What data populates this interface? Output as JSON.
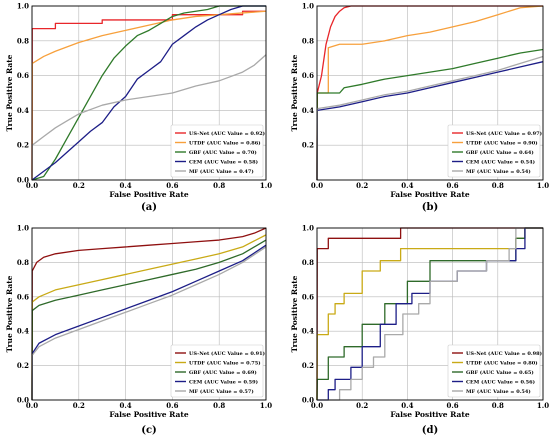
{
  "chart_data": [
    {
      "type": "line",
      "caption": "(a)",
      "xlabel": "False Positive Rate",
      "ylabel": "True Positive Rate",
      "xlim": [
        0,
        1
      ],
      "ylim": [
        0,
        1
      ],
      "ticks": [
        "0.0",
        "0.2",
        "0.4",
        "0.6",
        "0.8",
        "1.0"
      ],
      "grid": true,
      "legend": "lower-right",
      "series": [
        {
          "name": "US-Net (AUC Value = 0.92)",
          "color": "#e8262a",
          "x": [
            0,
            0.001,
            0.1,
            0.1,
            0.3,
            0.3,
            0.6,
            0.6,
            0.9,
            0.9,
            1.0
          ],
          "y": [
            0,
            0.87,
            0.87,
            0.9,
            0.9,
            0.92,
            0.92,
            0.95,
            0.95,
            0.97,
            0.97
          ]
        },
        {
          "name": "UTDF (AUC Value = 0.86)",
          "color": "#f7a03c",
          "x": [
            0,
            0.001,
            0.05,
            0.1,
            0.2,
            0.3,
            0.4,
            0.5,
            0.6,
            0.7,
            0.8,
            0.9,
            1.0
          ],
          "y": [
            0,
            0.67,
            0.71,
            0.74,
            0.79,
            0.83,
            0.86,
            0.89,
            0.92,
            0.94,
            0.95,
            0.96,
            0.97
          ]
        },
        {
          "name": "GBF (AUC Value = 0.70)",
          "color": "#2f7a2a",
          "x": [
            0,
            0.05,
            0.1,
            0.15,
            0.2,
            0.25,
            0.3,
            0.35,
            0.4,
            0.45,
            0.5,
            0.55,
            0.6,
            0.65,
            0.7,
            0.75,
            0.8,
            0.9,
            1.0
          ],
          "y": [
            0,
            0.02,
            0.12,
            0.24,
            0.36,
            0.48,
            0.6,
            0.7,
            0.77,
            0.83,
            0.86,
            0.9,
            0.94,
            0.96,
            0.97,
            0.98,
            1.0,
            1.0,
            1.0
          ]
        },
        {
          "name": "CEM (AUC Value = 0.58)",
          "color": "#1d1e87",
          "x": [
            0,
            0.1,
            0.2,
            0.25,
            0.3,
            0.35,
            0.4,
            0.45,
            0.5,
            0.55,
            0.6,
            0.65,
            0.7,
            0.75,
            0.8,
            0.85,
            0.9,
            1.0
          ],
          "y": [
            0,
            0.1,
            0.22,
            0.28,
            0.33,
            0.42,
            0.48,
            0.58,
            0.63,
            0.68,
            0.78,
            0.83,
            0.88,
            0.92,
            0.95,
            0.98,
            1.0,
            1.0
          ]
        },
        {
          "name": "MF (AUC Value = 0.47)",
          "color": "#a9a9a9",
          "x": [
            0,
            0.001,
            0.05,
            0.1,
            0.15,
            0.2,
            0.3,
            0.4,
            0.5,
            0.6,
            0.65,
            0.7,
            0.8,
            0.9,
            0.95,
            1.0
          ],
          "y": [
            0,
            0.2,
            0.25,
            0.3,
            0.34,
            0.38,
            0.43,
            0.46,
            0.48,
            0.5,
            0.52,
            0.54,
            0.57,
            0.62,
            0.66,
            0.72
          ]
        }
      ]
    },
    {
      "type": "line",
      "caption": "(b)",
      "xlabel": "False Positive Rate",
      "ylabel": "True Positive Rate",
      "xlim": [
        0,
        1
      ],
      "ylim": [
        0,
        1
      ],
      "yticks_start": 0.2,
      "ticks": [
        "0.0",
        "0.2",
        "0.4",
        "0.6",
        "0.8",
        "1.0"
      ],
      "grid": true,
      "legend": "lower-right",
      "series": [
        {
          "name": "US-Net (AUC Value = 0.97)",
          "color": "#e8262a",
          "x": [
            0,
            0.001,
            0.02,
            0.04,
            0.06,
            0.08,
            0.1,
            0.12,
            0.15,
            0.2,
            0.5,
            0.9,
            1.0
          ],
          "y": [
            0,
            0.5,
            0.6,
            0.78,
            0.88,
            0.94,
            0.97,
            0.99,
            1.0,
            1.0,
            1.0,
            1.0,
            1.0
          ]
        },
        {
          "name": "UTDF (AUC Value = 0.90)",
          "color": "#f7a03c",
          "x": [
            0,
            0.001,
            0.05,
            0.05,
            0.1,
            0.2,
            0.3,
            0.4,
            0.5,
            0.6,
            0.7,
            0.8,
            0.9,
            1.0
          ],
          "y": [
            0,
            0.5,
            0.5,
            0.76,
            0.78,
            0.78,
            0.8,
            0.83,
            0.85,
            0.88,
            0.91,
            0.95,
            0.99,
            1.0
          ]
        },
        {
          "name": "GBF (AUC Value = 0.64)",
          "color": "#2f7a2a",
          "x": [
            0,
            0.001,
            0.1,
            0.12,
            0.2,
            0.3,
            0.4,
            0.5,
            0.6,
            0.7,
            0.8,
            0.9,
            1.0
          ],
          "y": [
            0,
            0.5,
            0.5,
            0.53,
            0.55,
            0.58,
            0.6,
            0.62,
            0.64,
            0.67,
            0.7,
            0.73,
            0.75
          ]
        },
        {
          "name": "CEM (AUC Value = 0.54)",
          "color": "#1d1e87",
          "x": [
            0,
            0.001,
            0.1,
            0.2,
            0.3,
            0.4,
            0.5,
            0.6,
            0.7,
            0.8,
            0.9,
            1.0
          ],
          "y": [
            0,
            0.4,
            0.42,
            0.45,
            0.48,
            0.5,
            0.53,
            0.56,
            0.59,
            0.62,
            0.65,
            0.68
          ]
        },
        {
          "name": "MF (AUC Value = 0.54)",
          "color": "#a9a9a9",
          "x": [
            0,
            0.001,
            0.1,
            0.2,
            0.3,
            0.4,
            0.5,
            0.6,
            0.7,
            0.8,
            0.9,
            1.0
          ],
          "y": [
            0,
            0.41,
            0.43,
            0.46,
            0.49,
            0.51,
            0.54,
            0.57,
            0.6,
            0.63,
            0.67,
            0.71
          ]
        }
      ]
    },
    {
      "type": "line",
      "caption": "(c)",
      "xlabel": "False Positive Rate",
      "ylabel": "True Positive Rate",
      "xlim": [
        0,
        1
      ],
      "ylim": [
        0,
        1
      ],
      "ticks": [
        "0.0",
        "0.2",
        "0.4",
        "0.6",
        "0.8",
        "1.0"
      ],
      "grid": true,
      "legend": "lower-right",
      "series": [
        {
          "name": "US-Net (AUC Value = 0.91)",
          "color": "#8f1010",
          "x": [
            0,
            0.001,
            0.02,
            0.05,
            0.1,
            0.2,
            0.3,
            0.4,
            0.5,
            0.6,
            0.7,
            0.8,
            0.9,
            0.95,
            1.0
          ],
          "y": [
            0,
            0.75,
            0.8,
            0.83,
            0.85,
            0.87,
            0.88,
            0.89,
            0.9,
            0.91,
            0.92,
            0.93,
            0.95,
            0.97,
            1.0
          ]
        },
        {
          "name": "UTDF (AUC Value = 0.75)",
          "color": "#c9aa16",
          "x": [
            0,
            0.001,
            0.03,
            0.1,
            0.2,
            0.3,
            0.4,
            0.5,
            0.6,
            0.7,
            0.8,
            0.9,
            1.0
          ],
          "y": [
            0,
            0.57,
            0.6,
            0.64,
            0.67,
            0.7,
            0.73,
            0.76,
            0.79,
            0.82,
            0.85,
            0.89,
            0.96
          ]
        },
        {
          "name": "GBF (AUC Value = 0.69)",
          "color": "#2f6a2a",
          "x": [
            0,
            0.001,
            0.03,
            0.1,
            0.2,
            0.3,
            0.4,
            0.5,
            0.6,
            0.7,
            0.8,
            0.9,
            1.0
          ],
          "y": [
            0,
            0.52,
            0.55,
            0.58,
            0.61,
            0.64,
            0.67,
            0.7,
            0.73,
            0.76,
            0.8,
            0.85,
            0.93
          ]
        },
        {
          "name": "CEM (AUC Value = 0.59)",
          "color": "#1d1e87",
          "x": [
            0,
            0.001,
            0.03,
            0.1,
            0.2,
            0.3,
            0.4,
            0.5,
            0.6,
            0.7,
            0.8,
            0.9,
            1.0
          ],
          "y": [
            0,
            0.27,
            0.33,
            0.38,
            0.43,
            0.48,
            0.53,
            0.58,
            0.63,
            0.69,
            0.75,
            0.81,
            0.9
          ]
        },
        {
          "name": "MF (AUC Value = 0.57)",
          "color": "#a9a9a9",
          "x": [
            0,
            0.001,
            0.03,
            0.1,
            0.2,
            0.3,
            0.4,
            0.5,
            0.6,
            0.7,
            0.8,
            0.9,
            1.0
          ],
          "y": [
            0,
            0.26,
            0.31,
            0.36,
            0.41,
            0.46,
            0.51,
            0.56,
            0.61,
            0.67,
            0.73,
            0.8,
            0.89
          ]
        }
      ]
    },
    {
      "type": "line",
      "caption": "(d)",
      "xlabel": "False Positive Rate",
      "ylabel": "True Positive Rate",
      "xlim": [
        0,
        1
      ],
      "ylim": [
        0,
        1
      ],
      "ticks": [
        "0.0",
        "0.2",
        "0.4",
        "0.6",
        "0.8",
        "1.0"
      ],
      "grid": true,
      "legend": "lower-right",
      "series": [
        {
          "name": "US-Net (AUC Value = 0.98)",
          "color": "#8f1010",
          "x": [
            0,
            0.001,
            0.05,
            0.05,
            0.37,
            0.37,
            1.0
          ],
          "y": [
            0,
            0.88,
            0.88,
            0.94,
            0.94,
            1.0,
            1.0
          ]
        },
        {
          "name": "UTDF (AUC Value = 0.80)",
          "color": "#c9aa16",
          "x": [
            0,
            0.001,
            0.05,
            0.05,
            0.08,
            0.08,
            0.12,
            0.12,
            0.2,
            0.2,
            0.28,
            0.28,
            0.37,
            0.37,
            0.5,
            0.5,
            0.88,
            0.88,
            0.92,
            0.92,
            1.0
          ],
          "y": [
            0,
            0.38,
            0.38,
            0.5,
            0.5,
            0.56,
            0.56,
            0.62,
            0.62,
            0.75,
            0.75,
            0.81,
            0.81,
            0.88,
            0.88,
            0.88,
            0.88,
            0.94,
            0.94,
            1.0,
            1.0
          ]
        },
        {
          "name": "GBF (AUC Value = 0.65)",
          "color": "#2f6a2a",
          "x": [
            0,
            0.001,
            0.05,
            0.05,
            0.12,
            0.12,
            0.2,
            0.2,
            0.3,
            0.3,
            0.4,
            0.4,
            0.5,
            0.5,
            0.62,
            0.62,
            0.88,
            0.88,
            0.92,
            0.92,
            1.0
          ],
          "y": [
            0,
            0.12,
            0.12,
            0.25,
            0.25,
            0.31,
            0.31,
            0.44,
            0.44,
            0.56,
            0.56,
            0.69,
            0.69,
            0.81,
            0.81,
            0.81,
            0.81,
            0.94,
            0.94,
            1.0,
            1.0
          ]
        },
        {
          "name": "CEM (AUC Value = 0.56)",
          "color": "#1d1e87",
          "x": [
            0,
            0.05,
            0.05,
            0.08,
            0.08,
            0.15,
            0.15,
            0.2,
            0.2,
            0.28,
            0.28,
            0.35,
            0.35,
            0.42,
            0.42,
            0.5,
            0.5,
            0.62,
            0.62,
            0.75,
            0.75,
            0.88,
            0.88,
            0.92,
            0.92,
            1.0
          ],
          "y": [
            0,
            0.0,
            0.06,
            0.06,
            0.12,
            0.12,
            0.19,
            0.19,
            0.31,
            0.31,
            0.44,
            0.44,
            0.56,
            0.56,
            0.62,
            0.62,
            0.69,
            0.69,
            0.75,
            0.75,
            0.81,
            0.81,
            0.88,
            0.88,
            1.0,
            1.0
          ]
        },
        {
          "name": "MF (AUC Value = 0.54)",
          "color": "#a9a9a9",
          "x": [
            0,
            0.1,
            0.1,
            0.15,
            0.15,
            0.2,
            0.2,
            0.25,
            0.25,
            0.3,
            0.3,
            0.38,
            0.38,
            0.45,
            0.45,
            0.5,
            0.5,
            0.62,
            0.62,
            0.75,
            0.75,
            0.85,
            0.85,
            0.88,
            0.88,
            1.0
          ],
          "y": [
            0,
            0.0,
            0.06,
            0.06,
            0.12,
            0.12,
            0.19,
            0.19,
            0.25,
            0.25,
            0.38,
            0.38,
            0.5,
            0.5,
            0.56,
            0.56,
            0.69,
            0.69,
            0.75,
            0.75,
            0.81,
            0.81,
            0.88,
            0.88,
            1.0,
            1.0
          ]
        }
      ]
    }
  ]
}
